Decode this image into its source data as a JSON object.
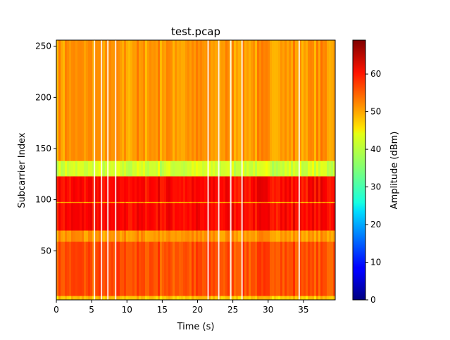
{
  "chart_data": {
    "type": "heatmap",
    "title": "test.pcap",
    "xlabel": "Time (s)",
    "ylabel": "Subcarrier Index",
    "xlim": [
      0,
      39.5
    ],
    "ylim": [
      2,
      256
    ],
    "xticks": [
      0,
      5,
      10,
      15,
      20,
      25,
      30,
      35
    ],
    "yticks": [
      50,
      100,
      150,
      200,
      250
    ],
    "colormap": "jet",
    "colorbar": {
      "label": "Amplitude (dBm)",
      "range": [
        0,
        69
      ],
      "ticks": [
        0,
        10,
        20,
        30,
        40,
        50,
        60
      ]
    },
    "bands": [
      {
        "subcarriers": [
          2,
          6
        ],
        "amplitude": 47
      },
      {
        "subcarriers": [
          6,
          59
        ],
        "amplitude": 55
      },
      {
        "subcarriers": [
          59,
          70
        ],
        "amplitude": 50
      },
      {
        "subcarriers": [
          70,
          97
        ],
        "amplitude": 60
      },
      {
        "subcarriers": [
          97,
          98
        ],
        "amplitude": 49
      },
      {
        "subcarriers": [
          98,
          123
        ],
        "amplitude": 60
      },
      {
        "subcarriers": [
          123,
          138
        ],
        "amplitude": 40
      },
      {
        "subcarriers": [
          138,
          256
        ],
        "amplitude": 50
      }
    ],
    "missing_times": [
      5.4,
      6.4,
      7.3,
      8.4,
      21.5,
      23.0,
      24.7,
      26.3,
      34.4
    ],
    "grid": false
  }
}
